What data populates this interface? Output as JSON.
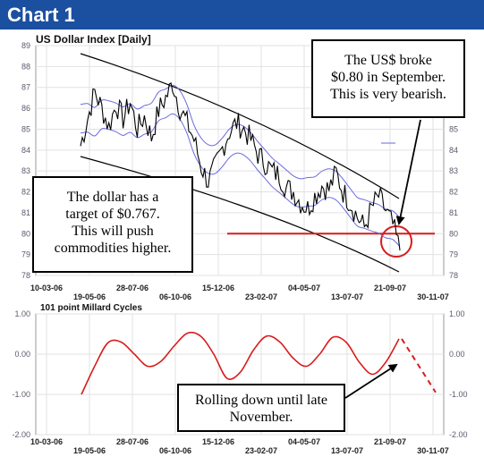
{
  "header": {
    "title": "Chart 1"
  },
  "colors": {
    "header_bg": "#1b4fa0",
    "price": "#000000",
    "bands": "#6a6adf",
    "channel": "#000000",
    "target_line": "#d81c1c",
    "cycle": "#d81c1c"
  },
  "annotations": {
    "top_right": [
      "The US$ broke",
      "$0.80 in September.",
      "This is very bearish."
    ],
    "left": [
      "The dollar has a",
      "target of $0.767.",
      "This will push",
      "commodities higher."
    ],
    "bottom_right": [
      "Rolling down until late",
      "November."
    ]
  },
  "chart_data": [
    {
      "type": "line",
      "title": "US Dollar Index  [Daily]",
      "ylim": [
        78,
        89
      ],
      "yticks": [
        78,
        79,
        80,
        81,
        82,
        83,
        84,
        85,
        86,
        87,
        88,
        89
      ],
      "yticks_right": [
        78,
        79,
        80,
        81,
        82,
        83,
        84,
        85
      ],
      "xticks_upper": [
        "10-03-06",
        "28-07-06",
        "15-12-06",
        "04-05-07",
        "21-09-07"
      ],
      "xticks_lower": [
        "19-05-06",
        "06-10-06",
        "23-02-07",
        "13-07-07",
        "30-11-07"
      ],
      "grid": true,
      "target_level": 80,
      "series": [
        {
          "values": [
            84.2,
            85.5,
            86.8,
            86.0,
            85.1,
            86.2,
            85.5,
            86.3,
            85.0,
            85.6,
            84.6,
            85.9,
            86.5,
            87.2,
            86.0,
            85.3,
            84.5,
            83.2,
            82.5,
            83.2,
            84.1,
            84.9,
            85.3,
            85.0,
            84.5,
            83.8,
            83.4,
            83.0,
            82.8,
            82.2,
            82.0,
            81.5,
            81.2,
            81.8,
            82.3,
            82.1,
            82.9,
            82.0,
            81.5,
            80.8,
            80.3,
            81.2,
            81.8,
            81.1,
            80.4,
            79.2
          ]
        }
      ]
    },
    {
      "type": "line",
      "title": "101 point Millard Cycles",
      "ylim": [
        -2.0,
        1.0
      ],
      "yticks": [
        -2.0,
        -1.0,
        0.0,
        1.0
      ],
      "xticks_upper": [
        "10-03-06",
        "28-07-06",
        "15-12-06",
        "04-05-07",
        "21-09-07"
      ],
      "xticks_lower": [
        "19-05-06",
        "06-10-06",
        "23-02-07",
        "13-07-07",
        "30-11-07"
      ],
      "grid": true,
      "series": [
        {
          "values": [
            -1.0,
            -0.3,
            0.28,
            0.3,
            0.0,
            -0.3,
            -0.18,
            0.2,
            0.52,
            0.45,
            0.0,
            -0.6,
            -0.45,
            0.1,
            0.45,
            0.3,
            -0.1,
            -0.3,
            0.0,
            0.42,
            0.3,
            -0.2,
            -0.5,
            -0.2,
            0.38
          ]
        },
        {
          "values": [
            0.38,
            -0.95
          ],
          "style": "dashed"
        }
      ]
    }
  ]
}
